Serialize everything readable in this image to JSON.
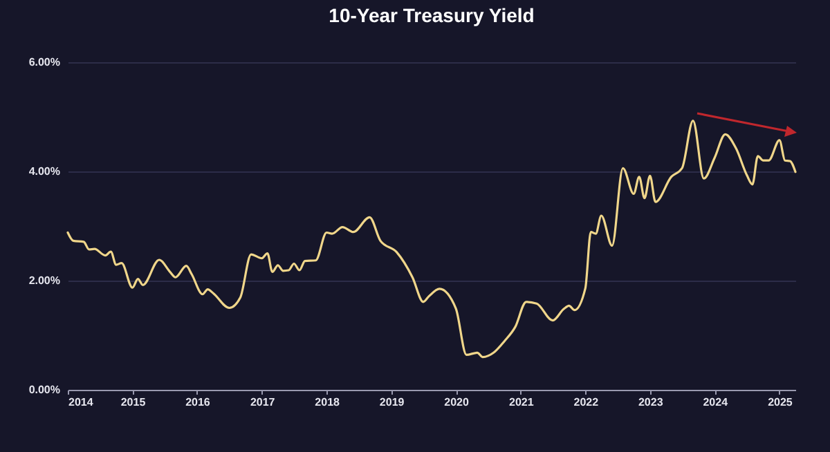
{
  "chart_data": {
    "type": "line",
    "title": "10-Year Treasury Yield",
    "x": [
      "2014-01",
      "2014-02",
      "2014-04",
      "2014-05",
      "2014-06",
      "2014-08",
      "2014-09",
      "2014-10",
      "2014-11",
      "2015-01",
      "2015-02",
      "2015-03",
      "2015-06",
      "2015-08",
      "2015-09",
      "2015-11",
      "2015-12",
      "2016-02",
      "2016-03",
      "2016-04",
      "2016-07",
      "2016-09",
      "2016-11",
      "2017-01",
      "2017-02",
      "2017-03",
      "2017-04",
      "2017-05",
      "2017-06",
      "2017-07",
      "2017-08",
      "2017-09",
      "2017-11",
      "2018-01",
      "2018-02",
      "2018-04",
      "2018-06",
      "2018-09",
      "2018-11",
      "2019-02",
      "2019-05",
      "2019-07",
      "2019-08",
      "2019-10",
      "2020-01",
      "2020-03",
      "2020-05",
      "2020-06",
      "2020-08",
      "2020-10",
      "2020-12",
      "2021-02",
      "2021-04",
      "2021-07",
      "2021-09",
      "2021-10",
      "2021-11",
      "2022-01",
      "2022-02",
      "2022-03",
      "2022-04",
      "2022-06",
      "2022-08",
      "2022-10",
      "2022-11",
      "2022-12",
      "2023-01",
      "2023-02",
      "2023-05",
      "2023-07",
      "2023-09",
      "2023-11",
      "2024-01",
      "2024-03",
      "2024-05",
      "2024-07",
      "2024-08",
      "2024-09",
      "2024-10",
      "2024-11",
      "2025-01",
      "2025-02",
      "2025-03",
      "2025-04"
    ],
    "series": [
      {
        "color": "#f0d68a",
        "values": [
          2.88,
          2.73,
          2.71,
          2.57,
          2.58,
          2.46,
          2.53,
          2.29,
          2.32,
          1.87,
          2.03,
          1.92,
          2.38,
          2.16,
          2.06,
          2.27,
          2.12,
          1.75,
          1.84,
          1.77,
          1.5,
          1.69,
          2.48,
          2.41,
          2.5,
          2.16,
          2.28,
          2.18,
          2.19,
          2.31,
          2.19,
          2.36,
          2.37,
          2.88,
          2.86,
          2.98,
          2.89,
          3.16,
          2.73,
          2.52,
          2.06,
          1.61,
          1.71,
          1.85,
          1.49,
          0.64,
          0.68,
          0.6,
          0.68,
          0.89,
          1.15,
          1.61,
          1.58,
          1.27,
          1.48,
          1.54,
          1.46,
          1.86,
          2.89,
          2.86,
          3.19,
          2.64,
          4.06,
          3.59,
          3.9,
          3.51,
          3.92,
          3.44,
          3.9,
          4.06,
          4.93,
          3.87,
          4.25,
          4.68,
          4.42,
          3.93,
          3.76,
          4.28,
          4.2,
          4.2,
          4.57,
          4.2,
          4.19,
          3.99
        ]
      }
    ],
    "xlim": [
      "2014-01",
      "2025-04"
    ],
    "xticks": [
      "2014",
      "2015",
      "2016",
      "2017",
      "2018",
      "2019",
      "2020",
      "2021",
      "2022",
      "2023",
      "2024",
      "2025"
    ],
    "ylim": [
      0,
      6
    ],
    "yticks": [
      {
        "value": 0,
        "label": "0.00%"
      },
      {
        "value": 2,
        "label": "2.00%"
      },
      {
        "value": 4,
        "label": "4.00%"
      },
      {
        "value": 6,
        "label": "6.00%"
      }
    ],
    "grid": "y"
  }
}
